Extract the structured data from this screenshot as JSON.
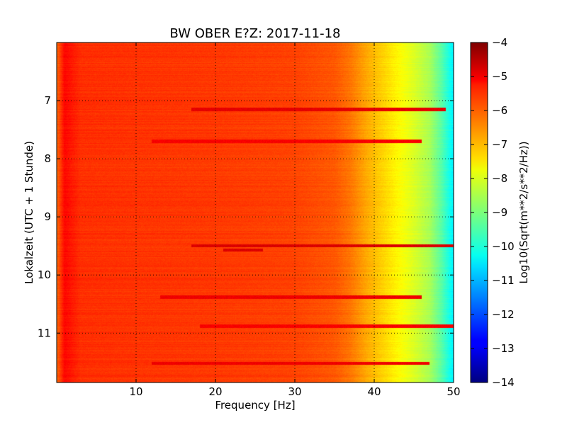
{
  "chart_data": {
    "type": "heatmap",
    "title": "BW OBER E?Z: 2017-11-18",
    "xlabel": "Frequency [Hz]",
    "ylabel": "Lokalzeit (UTC + 1 Stunde)",
    "xlim": [
      0,
      50
    ],
    "ylim": [
      11.85,
      6.0
    ],
    "x_ticks": [
      10,
      20,
      30,
      40,
      50
    ],
    "x_tick_labels": [
      "10",
      "20",
      "30",
      "40",
      "50"
    ],
    "y_ticks": [
      7,
      8,
      9,
      10,
      11
    ],
    "y_tick_labels": [
      "7",
      "8",
      "9",
      "10",
      "11"
    ],
    "grid": true,
    "colormap": "jet",
    "colorbar": {
      "label": "Log10(Sqrt(m**2/s**2/Hz))",
      "range": [
        -14,
        -4
      ],
      "ticks": [
        -4,
        -5,
        -6,
        -7,
        -8,
        -9,
        -10,
        -11,
        -12,
        -13,
        -14
      ],
      "tick_labels": [
        "−4",
        "−5",
        "−6",
        "−7",
        "−8",
        "−9",
        "−10",
        "−11",
        "−12",
        "−13",
        "−14"
      ]
    },
    "frequency_profile": {
      "frequency_hz": [
        0,
        1,
        3,
        10,
        20,
        30,
        35,
        37,
        39,
        41,
        43,
        45,
        47,
        48.5,
        50
      ],
      "log10_amplitude": [
        -6.3,
        -5.3,
        -5.7,
        -5.75,
        -5.8,
        -5.9,
        -6.1,
        -6.4,
        -6.9,
        -7.3,
        -7.7,
        -8.1,
        -8.6,
        -9.4,
        -10.4
      ]
    },
    "bands": [
      {
        "time": 7.15,
        "f_start": 17,
        "f_end": 49,
        "level": -5.0
      },
      {
        "time": 7.7,
        "f_start": 12,
        "f_end": 46,
        "level": -5.2
      },
      {
        "time": 9.5,
        "f_start": 17,
        "f_end": 50,
        "level": -4.9
      },
      {
        "time": 9.57,
        "f_start": 21,
        "f_end": 26,
        "level": -4.9
      },
      {
        "time": 10.38,
        "f_start": 13,
        "f_end": 46,
        "level": -5.1
      },
      {
        "time": 10.88,
        "f_start": 18,
        "f_end": 50,
        "level": -5.2
      },
      {
        "time": 11.52,
        "f_start": 12,
        "f_end": 47,
        "level": -5.1
      }
    ]
  }
}
